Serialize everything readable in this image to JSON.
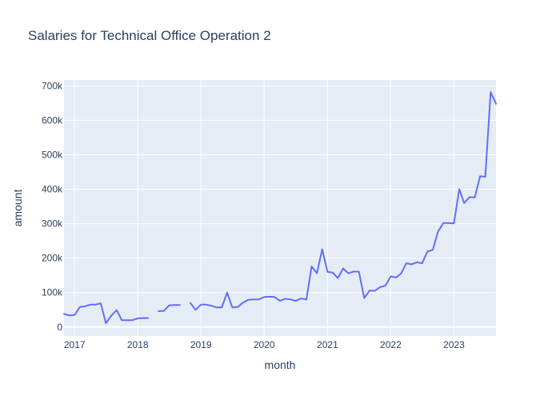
{
  "chart_data": {
    "type": "line",
    "title": "Salaries for Technical Office Operation 2",
    "xlabel": "month",
    "ylabel": "amount",
    "x_tick_labels": [
      "2017",
      "2018",
      "2019",
      "2020",
      "2021",
      "2022",
      "2023"
    ],
    "y_tick_labels": [
      "0",
      "100k",
      "200k",
      "300k",
      "400k",
      "500k",
      "600k",
      "700k"
    ],
    "y_ticks": [
      0,
      100000,
      200000,
      300000,
      400000,
      500000,
      600000,
      700000
    ],
    "xlim": [
      "2016-11-01",
      "2023-09-01"
    ],
    "ylim": [
      -26000,
      717000
    ],
    "grid": true,
    "colors": {
      "line": "#636efa",
      "plot_bg": "#e5ecf6",
      "grid": "#ffffff",
      "text": "#2a3f5f"
    },
    "series": [
      {
        "points": [
          [
            "2016-11-01",
            38000
          ],
          [
            "2016-12-01",
            34000
          ],
          [
            "2017-01-01",
            35000
          ],
          [
            "2017-02-01",
            58000
          ],
          [
            "2017-03-01",
            60000
          ],
          [
            "2017-04-01",
            65000
          ],
          [
            "2017-05-01",
            65000
          ],
          [
            "2017-06-01",
            69000
          ],
          [
            "2017-07-01",
            11000
          ],
          [
            "2017-08-01",
            33000
          ],
          [
            "2017-09-01",
            49000
          ],
          [
            "2017-10-01",
            20000
          ],
          [
            "2017-11-01",
            20000
          ],
          [
            "2017-12-01",
            20000
          ],
          [
            "2018-01-01",
            25000
          ],
          [
            "2018-02-01",
            26000
          ],
          [
            "2018-03-01",
            26000
          ],
          [
            "2018-04-01",
            null
          ],
          [
            "2018-05-01",
            46000
          ],
          [
            "2018-06-01",
            47000
          ],
          [
            "2018-07-01",
            63000
          ],
          [
            "2018-08-01",
            64000
          ],
          [
            "2018-09-01",
            64000
          ],
          [
            "2018-10-01",
            null
          ],
          [
            "2018-11-01",
            70000
          ],
          [
            "2018-12-01",
            50000
          ],
          [
            "2019-01-01",
            65000
          ],
          [
            "2019-02-01",
            65000
          ],
          [
            "2019-03-01",
            62000
          ],
          [
            "2019-04-01",
            57000
          ],
          [
            "2019-05-01",
            57000
          ],
          [
            "2019-06-01",
            100000
          ],
          [
            "2019-07-01",
            57000
          ],
          [
            "2019-08-01",
            58000
          ],
          [
            "2019-09-01",
            71000
          ],
          [
            "2019-10-01",
            79000
          ],
          [
            "2019-11-01",
            80000
          ],
          [
            "2019-12-01",
            80000
          ],
          [
            "2020-01-01",
            87000
          ],
          [
            "2020-02-01",
            88000
          ],
          [
            "2020-03-01",
            87000
          ],
          [
            "2020-04-01",
            76000
          ],
          [
            "2020-05-01",
            82000
          ],
          [
            "2020-06-01",
            80000
          ],
          [
            "2020-07-01",
            76000
          ],
          [
            "2020-08-01",
            83000
          ],
          [
            "2020-09-01",
            80000
          ],
          [
            "2020-10-01",
            176000
          ],
          [
            "2020-11-01",
            156000
          ],
          [
            "2020-12-01",
            226000
          ],
          [
            "2021-01-01",
            160000
          ],
          [
            "2021-02-01",
            158000
          ],
          [
            "2021-03-01",
            142000
          ],
          [
            "2021-04-01",
            170000
          ],
          [
            "2021-05-01",
            156000
          ],
          [
            "2021-06-01",
            161000
          ],
          [
            "2021-07-01",
            161000
          ],
          [
            "2021-08-01",
            84000
          ],
          [
            "2021-09-01",
            106000
          ],
          [
            "2021-10-01",
            105000
          ],
          [
            "2021-11-01",
            116000
          ],
          [
            "2021-12-01",
            120000
          ],
          [
            "2022-01-01",
            147000
          ],
          [
            "2022-02-01",
            144000
          ],
          [
            "2022-03-01",
            155000
          ],
          [
            "2022-04-01",
            185000
          ],
          [
            "2022-05-01",
            182000
          ],
          [
            "2022-06-01",
            188000
          ],
          [
            "2022-07-01",
            185000
          ],
          [
            "2022-08-01",
            219000
          ],
          [
            "2022-09-01",
            224000
          ],
          [
            "2022-10-01",
            277000
          ],
          [
            "2022-11-01",
            302000
          ],
          [
            "2022-12-01",
            302000
          ],
          [
            "2023-01-01",
            301000
          ],
          [
            "2023-02-01",
            400000
          ],
          [
            "2023-03-01",
            360000
          ],
          [
            "2023-04-01",
            377000
          ],
          [
            "2023-05-01",
            376000
          ],
          [
            "2023-06-01",
            438000
          ],
          [
            "2023-07-01",
            436000
          ],
          [
            "2023-08-01",
            682000
          ],
          [
            "2023-09-01",
            648000
          ]
        ]
      }
    ]
  }
}
